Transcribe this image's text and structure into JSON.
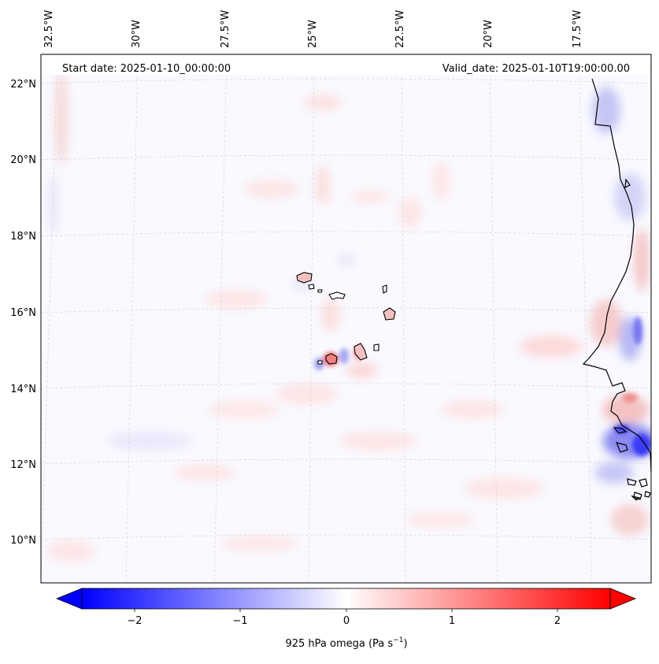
{
  "map": {
    "start_date_text": "Start date: 2025-01-10_00:00:00",
    "valid_date_text": "Valid_date: 2025-01-10T19:00:00.00",
    "lon_labels": [
      "32.5°W",
      "30°W",
      "27.5°W",
      "25°W",
      "22.5°W",
      "20°W",
      "17.5°W"
    ],
    "lat_labels": [
      "22°N",
      "20°N",
      "18°N",
      "16°N",
      "14°N",
      "12°N",
      "10°N"
    ],
    "field": "925 hPa omega",
    "colormap": "bwr",
    "value_range": [
      -2.5,
      2.5
    ],
    "features": [
      {
        "name": "Cape Verde islands",
        "shade": "positive"
      },
      {
        "name": "West African coast",
        "shade": "mixed"
      }
    ]
  },
  "colorbar": {
    "ticks": [
      "−2",
      "−1",
      "0",
      "1",
      "2"
    ],
    "label_main": "925 hPa omega (Pa s",
    "label_exp": "−1",
    "label_close": ")",
    "colors": {
      "negative": "#0000ff",
      "zero": "#ffffff",
      "positive": "#ff0000"
    }
  }
}
